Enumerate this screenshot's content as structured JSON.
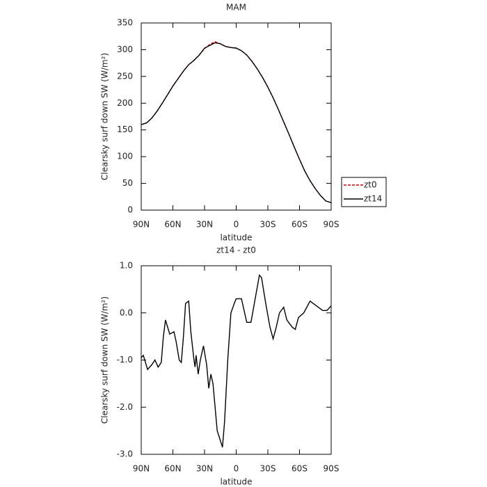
{
  "chart_data": [
    {
      "type": "line",
      "title": "MAM",
      "xlabel": "latitude",
      "ylabel": "Clearsky surf down SW (W/m²)",
      "x": [
        90,
        85,
        80,
        75,
        70,
        65,
        60,
        55,
        50,
        45,
        40,
        35,
        30,
        25,
        20,
        15,
        10,
        5,
        0,
        -5,
        -10,
        -15,
        -20,
        -25,
        -30,
        -35,
        -40,
        -45,
        -50,
        -55,
        -60,
        -65,
        -70,
        -75,
        -80,
        -85,
        -90
      ],
      "series": [
        {
          "name": "zt0",
          "color": "#cc0000",
          "dash": true,
          "values": [
            160,
            163,
            172,
            185,
            200,
            216,
            232,
            246,
            260,
            272,
            280,
            290,
            302,
            310,
            315,
            311,
            306,
            304,
            303,
            298,
            290,
            278,
            264,
            248,
            230,
            210,
            188,
            165,
            142,
            118,
            95,
            73,
            55,
            40,
            27,
            17,
            14
          ]
        },
        {
          "name": "zt14",
          "color": "#000000",
          "dash": false,
          "values": [
            160,
            163,
            172,
            185,
            200,
            216,
            232,
            246,
            260,
            272,
            280,
            290,
            303,
            308,
            313,
            311,
            306,
            304,
            303,
            298,
            290,
            278,
            264,
            248,
            230,
            210,
            188,
            165,
            142,
            118,
            95,
            73,
            55,
            40,
            27,
            17,
            14
          ]
        }
      ],
      "xlim": [
        90,
        -90
      ],
      "xticks": [
        {
          "value": 90,
          "label": "90N"
        },
        {
          "value": 60,
          "label": "60N"
        },
        {
          "value": 30,
          "label": "30N"
        },
        0,
        {
          "value": -30,
          "label": "30S"
        },
        {
          "value": -60,
          "label": "60S"
        },
        {
          "value": -90,
          "label": "90S"
        }
      ],
      "ylim": [
        0,
        350
      ],
      "yticks": [
        0,
        50,
        100,
        150,
        200,
        250,
        300,
        350
      ],
      "legend": "right-outside"
    },
    {
      "type": "line",
      "title": "zt14 - zt0",
      "xlabel": "latitude",
      "ylabel": "Clearsky surf down SW (W/m²)",
      "x": [
        90,
        88,
        84,
        80,
        77,
        74,
        71,
        69,
        67,
        63,
        59,
        57,
        54,
        52,
        50,
        48,
        45,
        43,
        40,
        39,
        38,
        36,
        34,
        31,
        28,
        26,
        24,
        22,
        18,
        13,
        11,
        8,
        5,
        1,
        0,
        -5,
        -10,
        -14,
        -18,
        -22,
        -24,
        -28,
        -32,
        -35,
        -38,
        -41,
        -45,
        -48,
        -53,
        -56,
        -59,
        -64,
        -70,
        -76,
        -82,
        -86,
        -90
      ],
      "values": [
        -0.95,
        -0.9,
        -1.2,
        -1.1,
        -1.0,
        -1.15,
        -1.05,
        -0.5,
        -0.15,
        -0.45,
        -0.4,
        -0.6,
        -1.0,
        -1.05,
        -0.5,
        0.2,
        0.25,
        -0.4,
        -1.0,
        -1.15,
        -0.9,
        -1.3,
        -1.0,
        -0.7,
        -1.1,
        -1.6,
        -1.3,
        -1.5,
        -2.5,
        -2.85,
        -2.3,
        -1.0,
        0.0,
        0.25,
        0.3,
        0.3,
        -0.2,
        -0.2,
        0.3,
        0.8,
        0.75,
        0.2,
        -0.3,
        -0.55,
        -0.3,
        0.0,
        0.12,
        -0.15,
        -0.3,
        -0.35,
        -0.1,
        0.0,
        0.25,
        0.15,
        0.05,
        0.05,
        0.15
      ],
      "color": "#000000",
      "xlim": [
        90,
        -90
      ],
      "xticks": [
        {
          "value": 90,
          "label": "90N"
        },
        {
          "value": 60,
          "label": "60N"
        },
        {
          "value": 30,
          "label": "30N"
        },
        0,
        {
          "value": -30,
          "label": "30S"
        },
        {
          "value": -60,
          "label": "60S"
        },
        {
          "value": -90,
          "label": "90S"
        }
      ],
      "ylim": [
        -3,
        1
      ],
      "yticks": [
        {
          "value": 1,
          "label": "1.0"
        },
        {
          "value": 0,
          "label": "0.0"
        },
        {
          "value": -1,
          "label": "-1.0"
        },
        {
          "value": -2,
          "label": "-2.0"
        },
        {
          "value": -3,
          "label": "-3.0"
        }
      ]
    }
  ]
}
